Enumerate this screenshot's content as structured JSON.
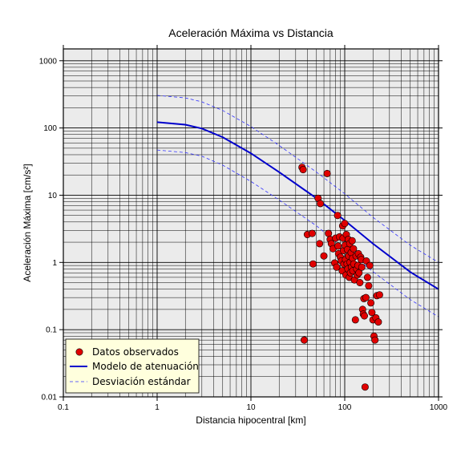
{
  "chart_data": {
    "type": "scatter",
    "title": "Aceleración Máxima vs Distancia",
    "xlabel": "Distancia hipocentral [km]",
    "ylabel": "Aceleración Máxima [cm/s²]",
    "x_scale": "log",
    "y_scale": "log",
    "xlim": [
      0.1,
      1000
    ],
    "ylim": [
      0.01,
      1500
    ],
    "x_ticks": [
      0.1,
      1,
      10,
      100,
      1000
    ],
    "x_tick_labels": [
      "0.1",
      "1",
      "10",
      "100",
      "1000"
    ],
    "y_ticks": [
      0.01,
      0.1,
      1,
      10,
      100,
      1000
    ],
    "y_tick_labels": [
      "0.01",
      "0.1",
      "1",
      "10",
      "100",
      "1000"
    ],
    "grid": true,
    "legend_position": "bottom-left",
    "colors": {
      "plot_bg": "#ebebeb",
      "points": "#e00000",
      "model": "#0000cc",
      "std": "#3333ff",
      "legend_bg": "#ffffdd"
    },
    "series": [
      {
        "name": "Datos observados",
        "kind": "scatter",
        "points": [
          [
            35,
            26
          ],
          [
            36,
            24
          ],
          [
            37,
            0.07
          ],
          [
            40,
            2.6
          ],
          [
            45,
            2.7
          ],
          [
            46,
            0.95
          ],
          [
            52,
            9.0
          ],
          [
            54,
            1.9
          ],
          [
            55,
            7.5
          ],
          [
            60,
            1.25
          ],
          [
            65,
            21
          ],
          [
            67,
            2.7
          ],
          [
            70,
            2.2
          ],
          [
            72,
            1.9
          ],
          [
            75,
            1.6
          ],
          [
            78,
            0.98
          ],
          [
            80,
            2.3
          ],
          [
            82,
            0.85
          ],
          [
            84,
            5.0
          ],
          [
            85,
            1.75
          ],
          [
            86,
            1.35
          ],
          [
            88,
            2.4
          ],
          [
            90,
            1.2
          ],
          [
            92,
            1.05
          ],
          [
            94,
            0.75
          ],
          [
            95,
            3.5
          ],
          [
            96,
            2.3
          ],
          [
            97,
            1.5
          ],
          [
            98,
            0.95
          ],
          [
            100,
            3.8
          ],
          [
            101,
            1.8
          ],
          [
            102,
            1.1
          ],
          [
            103,
            0.65
          ],
          [
            104,
            2.6
          ],
          [
            106,
            0.95
          ],
          [
            107,
            1.55
          ],
          [
            108,
            0.8
          ],
          [
            109,
            2.2
          ],
          [
            110,
            1.25
          ],
          [
            112,
            0.6
          ],
          [
            113,
            1.9
          ],
          [
            114,
            1.0
          ],
          [
            115,
            0.7
          ],
          [
            117,
            1.4
          ],
          [
            118,
            0.85
          ],
          [
            120,
            2.1
          ],
          [
            121,
            1.15
          ],
          [
            122,
            0.75
          ],
          [
            124,
            1.6
          ],
          [
            125,
            0.95
          ],
          [
            127,
            0.55
          ],
          [
            130,
            0.14
          ],
          [
            132,
            1.25
          ],
          [
            134,
            0.8
          ],
          [
            136,
            0.65
          ],
          [
            138,
            0.9
          ],
          [
            140,
            1.35
          ],
          [
            142,
            0.7
          ],
          [
            145,
            0.5
          ],
          [
            148,
            1.2
          ],
          [
            150,
            1.1
          ],
          [
            152,
            0.85
          ],
          [
            155,
            0.2
          ],
          [
            158,
            0.17
          ],
          [
            160,
            0.29
          ],
          [
            162,
            0.16
          ],
          [
            165,
            0.014
          ],
          [
            168,
            0.3
          ],
          [
            170,
            1.05
          ],
          [
            175,
            0.6
          ],
          [
            180,
            0.45
          ],
          [
            185,
            0.9
          ],
          [
            190,
            0.25
          ],
          [
            195,
            0.18
          ],
          [
            200,
            0.14
          ],
          [
            205,
            0.08
          ],
          [
            210,
            0.07
          ],
          [
            215,
            0.15
          ],
          [
            220,
            0.32
          ],
          [
            228,
            0.13
          ],
          [
            235,
            0.33
          ]
        ]
      },
      {
        "name": "Modelo de atenuación",
        "kind": "line",
        "points": [
          [
            1,
            122
          ],
          [
            2,
            112
          ],
          [
            3,
            98
          ],
          [
            5,
            73
          ],
          [
            10,
            42
          ],
          [
            20,
            22
          ],
          [
            50,
            9.0
          ],
          [
            100,
            4.2
          ],
          [
            200,
            1.9
          ],
          [
            500,
            0.72
          ],
          [
            1000,
            0.4
          ]
        ]
      },
      {
        "name": "Desviación estándar",
        "kind": "line",
        "style": "dashed",
        "lines": [
          [
            [
              1,
              305
            ],
            [
              2,
              280
            ],
            [
              3,
              245
            ],
            [
              5,
              182
            ],
            [
              10,
              105
            ],
            [
              20,
              55
            ],
            [
              50,
              22
            ],
            [
              100,
              10.5
            ],
            [
              200,
              4.7
            ],
            [
              500,
              1.8
            ],
            [
              1000,
              1.0
            ]
          ],
          [
            [
              1,
              47
            ],
            [
              2,
              43
            ],
            [
              3,
              38
            ],
            [
              5,
              28
            ],
            [
              10,
              16
            ],
            [
              20,
              8.5
            ],
            [
              50,
              3.5
            ],
            [
              100,
              1.6
            ],
            [
              200,
              0.73
            ],
            [
              500,
              0.28
            ],
            [
              1000,
              0.155
            ]
          ]
        ]
      }
    ]
  }
}
